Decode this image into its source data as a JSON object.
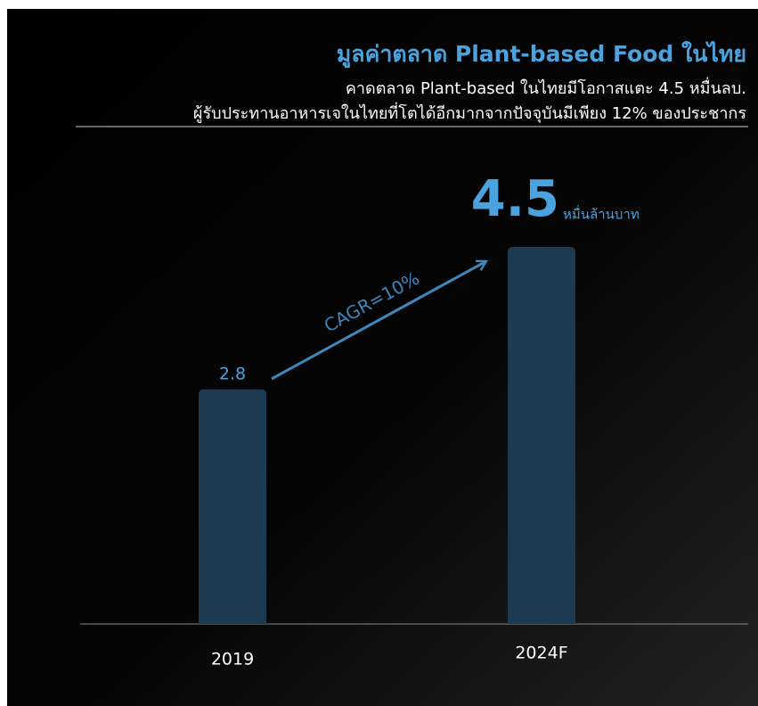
{
  "chart_data": {
    "type": "bar",
    "title": "มูลค่าตลาด Plant-based Food ในไทย",
    "subtitle": [
      "คาดตลาด Plant-based ในไทยมีโอกาสแตะ 4.5 หมื่นลบ.",
      "ผู้รับประทานอาหารเจในไทยที่โตได้อีกมากจากปัจจุบันมีเพียง 12% ของประชากร"
    ],
    "categories": [
      "2019",
      "2024F"
    ],
    "values": [
      2.8,
      4.5
    ],
    "unit": "หมื่นล้านบาท",
    "annotation": "CAGR=10%",
    "color": "#1d3a53"
  }
}
